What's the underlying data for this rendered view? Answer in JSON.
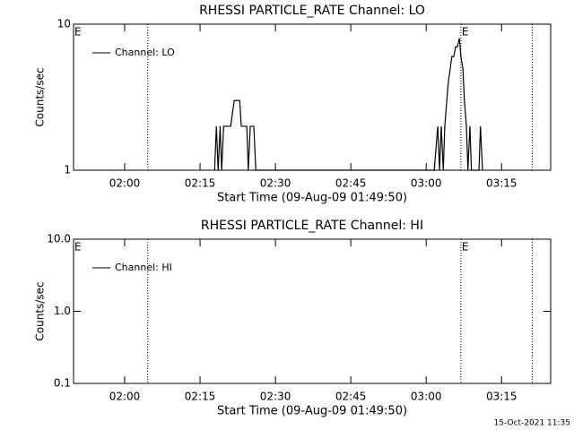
{
  "charts": [
    {
      "type": "line",
      "title": "RHESSI PARTICLE_RATE Channel: LO",
      "xlabel": "Start Time (09-Aug-09 01:49:50)",
      "ylabel": "Counts/sec",
      "log_y": true,
      "legend": "upper left",
      "color": "#000000",
      "xlim": [
        109.83,
        204.77
      ],
      "xticks": [
        {
          "value": 120,
          "label": "02:00"
        },
        {
          "value": 135,
          "label": "02:15"
        },
        {
          "value": 150,
          "label": "02:30"
        },
        {
          "value": 165,
          "label": "02:45"
        },
        {
          "value": 180,
          "label": "03:00"
        },
        {
          "value": 195,
          "label": "03:15"
        }
      ],
      "ylim": [
        1,
        10
      ],
      "yticks": [
        1,
        10
      ],
      "vlines": [
        124.6,
        186.9,
        201.1
      ],
      "markers": [
        {
          "x": 109.83,
          "label": "E"
        },
        {
          "x": 186.9,
          "label": "E"
        }
      ],
      "series": [
        {
          "name": "Channel: LO",
          "color": "#000000",
          "x": [
            137.9,
            138.25,
            138.6,
            139.0,
            139.3,
            139.7,
            141.1,
            141.8,
            142.9,
            143.2,
            144.3,
            144.6,
            145.0,
            145.7,
            146.1,
            181.6,
            182.3,
            182.65,
            183.0,
            183.4,
            183.7,
            184.1,
            184.4,
            184.8,
            185.1,
            185.5,
            185.85,
            186.2,
            186.6,
            186.9,
            187.3,
            187.6,
            188.0,
            188.3,
            188.7,
            189.0,
            190.5,
            190.8,
            191.2
          ],
          "values": [
            1,
            2,
            1,
            2,
            1,
            2,
            2,
            3,
            3,
            2,
            2,
            1,
            2,
            2,
            1,
            1,
            2,
            1,
            2,
            1,
            2,
            3,
            4,
            5,
            6,
            6,
            7,
            7,
            8,
            6,
            5,
            3,
            2,
            1,
            2,
            1,
            1,
            2,
            1
          ]
        }
      ]
    },
    {
      "type": "line",
      "title": "RHESSI PARTICLE_RATE Channel: HI",
      "xlabel": "Start Time (09-Aug-09 01:49:50)",
      "ylabel": "Counts/sec",
      "log_y": true,
      "legend": "upper left",
      "color": "#000000",
      "xlim": [
        109.83,
        204.77
      ],
      "xticks": [
        {
          "value": 120,
          "label": "02:00"
        },
        {
          "value": 135,
          "label": "02:15"
        },
        {
          "value": 150,
          "label": "02:30"
        },
        {
          "value": 165,
          "label": "02:45"
        },
        {
          "value": 180,
          "label": "03:00"
        },
        {
          "value": 195,
          "label": "03:15"
        }
      ],
      "ylim": [
        0.1,
        10
      ],
      "yticks": [
        {
          "value": 0.1,
          "label": "0.1"
        },
        {
          "value": 1,
          "label": "1.0"
        },
        {
          "value": 10,
          "label": "10.0"
        }
      ],
      "vlines": [
        124.6,
        186.9,
        201.1
      ],
      "markers": [
        {
          "x": 109.83,
          "label": "E"
        },
        {
          "x": 186.9,
          "label": "E"
        }
      ],
      "series": [
        {
          "name": "Channel: HI",
          "color": "#000000",
          "x": [],
          "values": []
        }
      ]
    }
  ],
  "footer": "15-Oct-2021 11:35"
}
